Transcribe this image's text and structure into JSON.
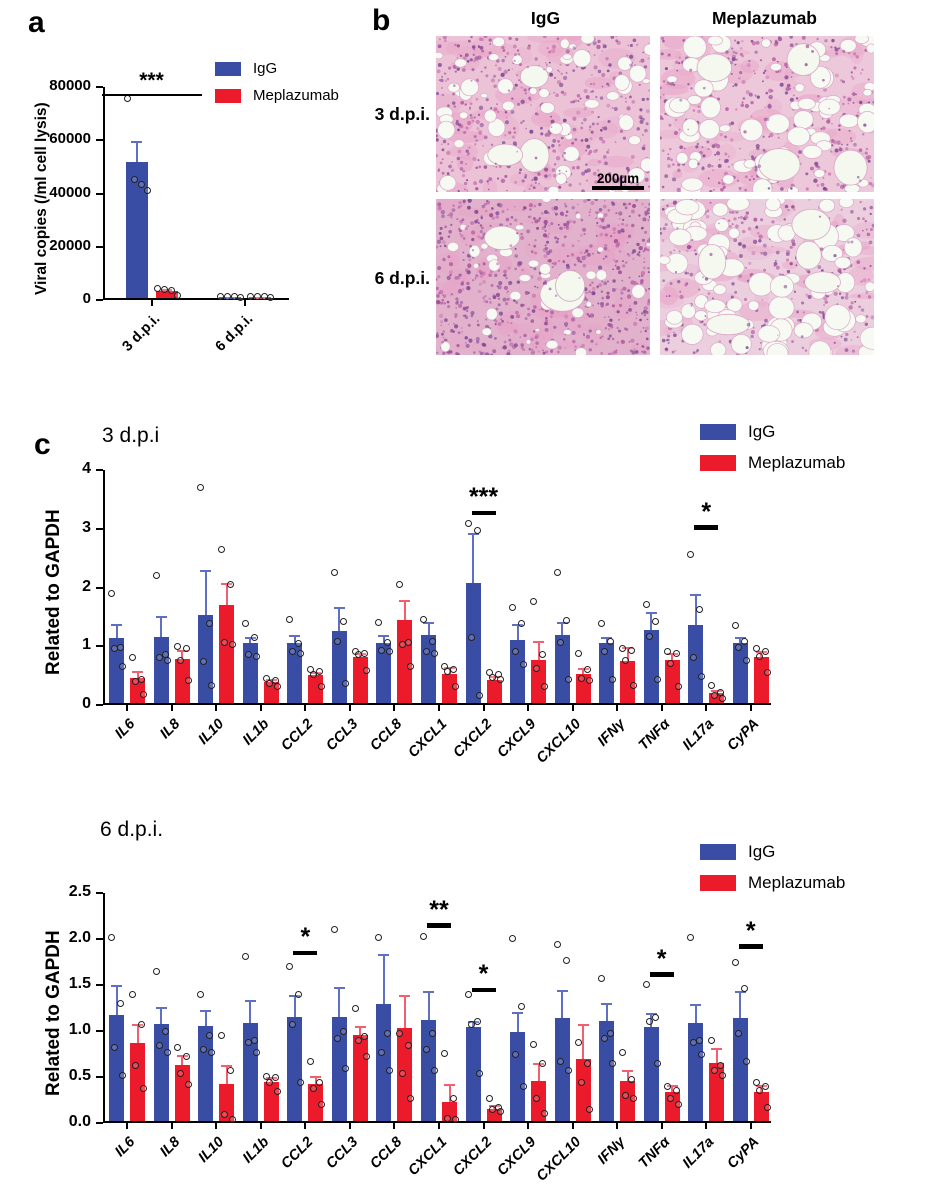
{
  "figure": {
    "panel_labels": {
      "a": "a",
      "b": "b",
      "c": "c"
    }
  },
  "colors": {
    "igg": "#3a4da4",
    "igg_err": "#5f6fc4",
    "meplazumab": "#ec1b2c",
    "meplazumab_err": "#f2606f",
    "axis": "#000000"
  },
  "legend": [
    {
      "label": "IgG",
      "color_key": "igg"
    },
    {
      "label": "Meplazumab",
      "color_key": "meplazumab"
    }
  ],
  "chart_data": [
    {
      "id": "viral_copies",
      "type": "bar",
      "title": "",
      "ylabel": "Viral copies (/ml cell lysis)",
      "ylim": [
        0,
        80000
      ],
      "yticks": [
        "0",
        "20000",
        "40000",
        "60000",
        "80000"
      ],
      "categories": [
        "3 d.p.i.",
        "6 d.p.i."
      ],
      "series": [
        {
          "name": "IgG",
          "color_key": "igg",
          "err_color_key": "igg_err",
          "values": [
            51000,
            350
          ],
          "errors": [
            8000,
            200
          ],
          "points": [
            [
              75000,
              44500,
              42500,
              40500
            ],
            [
              600,
              480,
              380,
              280
            ]
          ]
        },
        {
          "name": "Meplazumab",
          "color_key": "meplazumab",
          "err_color_key": "meplazumab_err",
          "values": [
            2500,
            350
          ],
          "errors": [
            800,
            200
          ],
          "points": [
            [
              3400,
              3100,
              2800,
              900
            ],
            [
              600,
              480,
              380,
              280
            ]
          ]
        }
      ],
      "significance": [
        {
          "category": "3 d.p.i.",
          "label": "***",
          "y": 76000
        }
      ]
    },
    {
      "id": "cytokines_3dpi",
      "type": "bar",
      "title": "3 d.p.i",
      "ylabel": "Related to GAPDH",
      "ylim": [
        0,
        4
      ],
      "yticks": [
        "0",
        "1",
        "2",
        "3",
        "4"
      ],
      "categories": [
        "IL6",
        "IL8",
        "IL10",
        "IL1b",
        "CCL2",
        "CCL3",
        "CCL8",
        "CXCL1",
        "CXCL2",
        "CXCL9",
        "CXCL10",
        "IFNγ",
        "TNFα",
        "IL17a",
        "CyPA"
      ],
      "series": [
        {
          "name": "IgG",
          "color_key": "igg",
          "err_color_key": "igg_err",
          "values": [
            1.1,
            1.13,
            1.5,
            1.03,
            1.02,
            1.23,
            1.02,
            1.15,
            2.05,
            1.08,
            1.15,
            1.02,
            1.25,
            1.33,
            1.02
          ],
          "errors": [
            0.25,
            0.35,
            0.76,
            0.1,
            0.13,
            0.4,
            0.13,
            0.23,
            0.85,
            0.27,
            0.23,
            0.1,
            0.3,
            0.52,
            0.1
          ],
          "points": [
            [
              1.87,
              0.95,
              0.92,
              0.63
            ],
            [
              2.17,
              0.82,
              0.78,
              0.73
            ],
            [
              3.67,
              1.35,
              0.7,
              0.3
            ],
            [
              1.35,
              1.12,
              0.82,
              0.8
            ],
            [
              1.42,
              1.02,
              0.88,
              0.85
            ],
            [
              2.22,
              1.38,
              1.05,
              0.33
            ],
            [
              1.37,
              1.03,
              0.9,
              0.87
            ],
            [
              1.42,
              1.05,
              0.88,
              0.85
            ],
            [
              3.05,
              2.93,
              1.12,
              0.13
            ],
            [
              1.63,
              1.35,
              0.87,
              0.65
            ],
            [
              2.22,
              1.4,
              1.03,
              0.4
            ],
            [
              1.35,
              1.05,
              0.88,
              0.4
            ],
            [
              1.67,
              1.38,
              1.13,
              0.4
            ],
            [
              2.52,
              1.6,
              0.78,
              0.45
            ],
            [
              1.32,
              1.05,
              0.95,
              0.73
            ]
          ]
        },
        {
          "name": "Meplazumab",
          "color_key": "meplazumab",
          "err_color_key": "meplazumab_err",
          "values": [
            0.42,
            0.75,
            1.67,
            0.35,
            0.47,
            0.79,
            1.41,
            0.5,
            0.4,
            0.73,
            0.5,
            0.72,
            0.73,
            0.17,
            0.78
          ],
          "errors": [
            0.12,
            0.15,
            0.38,
            0.06,
            0.06,
            0.06,
            0.34,
            0.12,
            0.06,
            0.32,
            0.1,
            0.23,
            0.12,
            0.06,
            0.1
          ],
          "points": [
            [
              0.78,
              0.4,
              0.37,
              0.15
            ],
            [
              0.97,
              0.92,
              0.73,
              0.38
            ],
            [
              2.62,
              2.02,
              1.03,
              1.0
            ],
            [
              0.42,
              0.38,
              0.33,
              0.28
            ],
            [
              0.57,
              0.53,
              0.48,
              0.28
            ],
            [
              0.88,
              0.85,
              0.82,
              0.55
            ],
            [
              2.02,
              1.03,
              1.0,
              0.62
            ],
            [
              0.62,
              0.57,
              0.53,
              0.28
            ],
            [
              0.52,
              0.48,
              0.43,
              0.4
            ],
            [
              1.73,
              0.83,
              0.58,
              0.28
            ],
            [
              0.85,
              0.57,
              0.42,
              0.38
            ],
            [
              0.93,
              0.9,
              0.72,
              0.3
            ],
            [
              0.88,
              0.85,
              0.68,
              0.28
            ],
            [
              0.3,
              0.18,
              0.12,
              0.08
            ],
            [
              0.92,
              0.88,
              0.8,
              0.52
            ]
          ]
        }
      ],
      "significance": [
        {
          "category": "CXCL2",
          "label": "***",
          "y": 3.2
        },
        {
          "category": "IL17a",
          "label": "*",
          "y": 2.95
        }
      ]
    },
    {
      "id": "cytokines_6dpi",
      "type": "bar",
      "title": "6 d.p.i.",
      "ylabel": "Related to GAPDH",
      "ylim": [
        0,
        2.5
      ],
      "yticks": [
        "0.0",
        "0.5",
        "1.0",
        "1.5",
        "2.0",
        "2.5"
      ],
      "categories": [
        "IL6",
        "IL8",
        "IL10",
        "IL1b",
        "CCL2",
        "CCL3",
        "CCL8",
        "CXCL1",
        "CXCL2",
        "CXCL9",
        "CXCL10",
        "IFNγ",
        "TNFα",
        "IL17a",
        "CyPA"
      ],
      "series": [
        {
          "name": "IgG",
          "color_key": "igg",
          "err_color_key": "igg_err",
          "values": [
            1.15,
            1.05,
            1.03,
            1.07,
            1.13,
            1.13,
            1.27,
            1.1,
            1.02,
            0.97,
            1.12,
            1.09,
            1.02,
            1.06,
            1.12
          ],
          "errors": [
            0.33,
            0.19,
            0.18,
            0.24,
            0.24,
            0.33,
            0.55,
            0.31,
            0.07,
            0.21,
            0.3,
            0.19,
            0.15,
            0.21,
            0.29
          ],
          "points": [
            [
              2.0,
              1.28,
              0.8,
              0.49
            ],
            [
              1.62,
              0.97,
              0.82,
              0.75
            ],
            [
              1.38,
              0.93,
              0.78,
              0.75
            ],
            [
              1.79,
              0.87,
              0.85,
              0.75
            ],
            [
              1.68,
              1.37,
              1.05,
              0.42
            ],
            [
              2.08,
              0.97,
              0.9,
              0.57
            ],
            [
              1.99,
              0.95,
              0.75,
              0.55
            ],
            [
              2.01,
              0.95,
              0.78,
              0.55
            ],
            [
              1.37,
              1.08,
              1.05,
              0.52
            ],
            [
              1.98,
              1.25,
              0.72,
              0.37
            ],
            [
              1.92,
              1.75,
              0.65,
              0.55
            ],
            [
              1.55,
              0.95,
              0.9,
              0.62
            ],
            [
              1.48,
              1.12,
              1.08,
              0.62
            ],
            [
              2.0,
              0.88,
              0.85,
              0.72
            ],
            [
              1.72,
              1.44,
              0.95,
              0.65
            ]
          ]
        },
        {
          "name": "Meplazumab",
          "color_key": "meplazumab",
          "err_color_key": "meplazumab_err",
          "values": [
            0.85,
            0.61,
            0.4,
            0.42,
            0.4,
            0.93,
            1.01,
            0.21,
            0.13,
            0.44,
            0.67,
            0.44,
            0.32,
            0.63,
            0.31
          ],
          "errors": [
            0.2,
            0.11,
            0.21,
            0.06,
            0.09,
            0.1,
            0.36,
            0.19,
            0.04,
            0.19,
            0.38,
            0.11,
            0.07,
            0.16,
            0.08
          ],
          "points": [
            [
              1.38,
              1.05,
              0.6,
              0.35
            ],
            [
              0.8,
              0.7,
              0.52,
              0.4
            ],
            [
              0.93,
              0.55,
              0.07,
              0.02
            ],
            [
              0.48,
              0.47,
              0.42,
              0.32
            ],
            [
              0.65,
              0.42,
              0.35,
              0.18
            ],
            [
              1.22,
              0.92,
              0.87,
              0.7
            ],
            [
              0.95,
              0.82,
              0.52,
              0.25
            ],
            [
              0.73,
              0.25,
              0.03,
              0.02
            ],
            [
              0.25,
              0.15,
              0.12,
              0.1
            ],
            [
              0.83,
              0.62,
              0.25,
              0.08
            ],
            [
              0.85,
              0.62,
              0.42,
              0.12
            ],
            [
              0.75,
              0.45,
              0.28,
              0.25
            ],
            [
              0.38,
              0.33,
              0.25,
              0.18
            ],
            [
              0.88,
              0.6,
              0.55,
              0.5
            ],
            [
              0.42,
              0.38,
              0.33,
              0.15
            ]
          ]
        }
      ],
      "significance": [
        {
          "category": "CCL2",
          "label": "*",
          "y": 1.8
        },
        {
          "category": "CXCL1",
          "label": "**",
          "y": 2.1
        },
        {
          "category": "CXCL2",
          "label": "*",
          "y": 1.4
        },
        {
          "category": "TNFα",
          "label": "*",
          "y": 1.57
        },
        {
          "category": "CyPA",
          "label": "*",
          "y": 1.87
        }
      ]
    }
  ],
  "panel_b": {
    "col_headers": [
      "IgG",
      "Meplazumab"
    ],
    "row_headers": [
      "3 d.p.i.",
      "6 d.p.i."
    ],
    "scale_bar_label": "200µm",
    "tiles": [
      {
        "row": "3 d.p.i.",
        "col": "IgG",
        "appearance": "dense pink infiltrate, small airspaces",
        "seed": 11,
        "nuclei": 520,
        "holes": 58,
        "hole_min": 3,
        "hole_max": 9,
        "big_holes": 3,
        "base": "#ecc2d7"
      },
      {
        "row": "3 d.p.i.",
        "col": "Meplazumab",
        "appearance": "moderate infiltrate, larger airspaces",
        "seed": 22,
        "nuclei": 430,
        "holes": 72,
        "hole_min": 4,
        "hole_max": 12,
        "big_holes": 4,
        "base": "#edc7da"
      },
      {
        "row": "6 d.p.i.",
        "col": "IgG",
        "appearance": "severe consolidation, dense cellularity",
        "seed": 33,
        "nuclei": 700,
        "holes": 36,
        "hole_min": 2,
        "hole_max": 7,
        "big_holes": 3,
        "base": "#e2b2cd"
      },
      {
        "row": "6 d.p.i.",
        "col": "Meplazumab",
        "appearance": "preserved open alveolar spaces",
        "seed": 44,
        "nuclei": 380,
        "holes": 90,
        "hole_min": 5,
        "hole_max": 13,
        "big_holes": 5,
        "base": "#eccfdf"
      }
    ]
  }
}
